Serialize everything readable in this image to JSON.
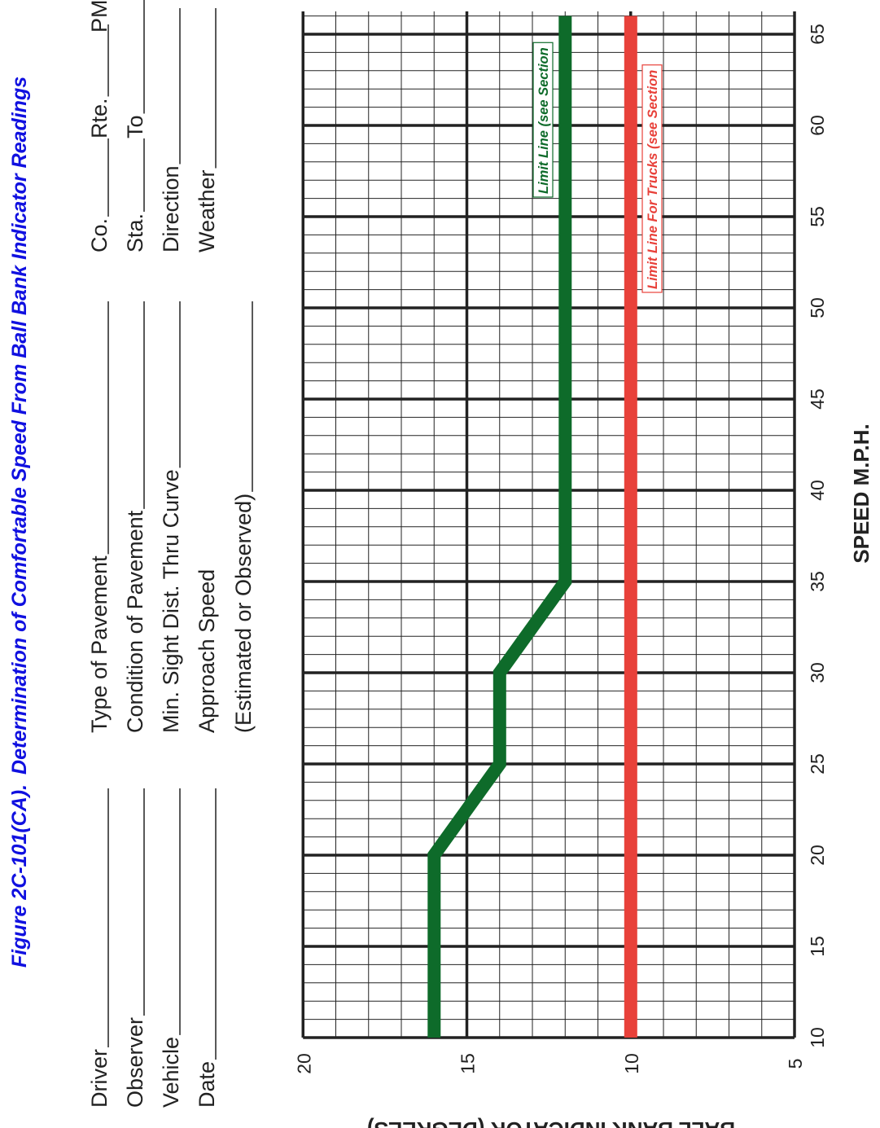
{
  "figure": {
    "title_prefix": "Figure 2C-101(CA).",
    "title_text": "Determination of Comfortable Speed From Ball Bank Indicator Readings"
  },
  "form": {
    "col1": [
      "Driver",
      "Observer",
      "Vehicle",
      "Date"
    ],
    "col2": [
      "Type of Pavement",
      "Condition of Pavement",
      "Min. Sight Dist. Thru Curve",
      "Approach Speed",
      "(Estimated or Observed)"
    ],
    "col3a": [
      "Co.",
      "Sta.",
      "Direction",
      "Weather"
    ],
    "col3b": [
      "Rte.",
      "To"
    ],
    "col3c": [
      "PM"
    ]
  },
  "chart_data": {
    "type": "line",
    "xlabel": "SPEED M.P.H.",
    "ylabel": "BALL BANK INDICATOR (DEGREES)",
    "xlim": [
      10,
      65
    ],
    "ylim": [
      5,
      20
    ],
    "x_ticks": [
      10,
      15,
      20,
      25,
      30,
      35,
      40,
      45,
      50,
      55,
      60,
      65
    ],
    "y_ticks": [
      5,
      10,
      15,
      20
    ],
    "x_minor_step": 1,
    "y_minor_step": 1,
    "grid": true,
    "series": [
      {
        "name": "Limit Line (see Section",
        "color": "#0e6b2a",
        "x": [
          10,
          20,
          25,
          30,
          35,
          66
        ],
        "y": [
          16,
          16,
          14,
          14,
          12,
          12
        ]
      },
      {
        "name": "Limit Line For Trucks (see Section",
        "color": "#e8413a",
        "x": [
          10,
          66
        ],
        "y": [
          10,
          10
        ]
      }
    ]
  }
}
